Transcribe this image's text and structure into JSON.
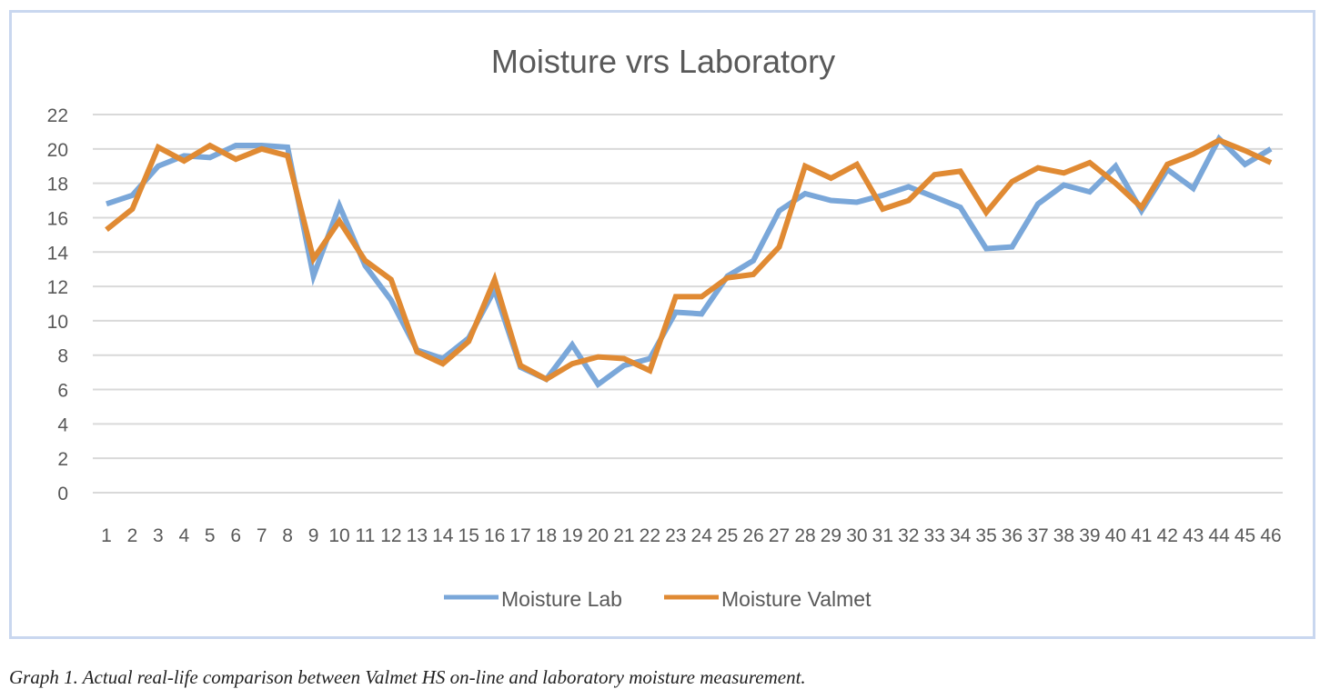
{
  "chart_data": {
    "type": "line",
    "title": "Moisture vrs Laboratory",
    "xlabel": "",
    "ylabel": "",
    "ylim": [
      0,
      22
    ],
    "yticks": [
      "0",
      "2",
      "4",
      "6",
      "8",
      "10",
      "12",
      "14",
      "16",
      "18",
      "20",
      "22"
    ],
    "grid": true,
    "legend_position": "bottom",
    "x": [
      "1",
      "2",
      "3",
      "4",
      "5",
      "6",
      "7",
      "8",
      "9",
      "10",
      "11",
      "12",
      "13",
      "14",
      "15",
      "16",
      "17",
      "18",
      "19",
      "20",
      "21",
      "22",
      "23",
      "24",
      "25",
      "26",
      "27",
      "28",
      "29",
      "30",
      "31",
      "32",
      "33",
      "34",
      "35",
      "36",
      "37",
      "38",
      "39",
      "40",
      "41",
      "42",
      "43",
      "44",
      "45",
      "46"
    ],
    "series": [
      {
        "name": "Moisture Lab",
        "color": "#7aa7d9",
        "values": [
          16.8,
          17.3,
          19.0,
          19.6,
          19.5,
          20.2,
          20.2,
          20.1,
          12.6,
          16.7,
          13.2,
          11.2,
          8.3,
          7.8,
          9.0,
          11.8,
          7.3,
          6.6,
          8.6,
          6.3,
          7.4,
          7.8,
          10.5,
          10.4,
          12.6,
          13.5,
          16.4,
          17.4,
          17.0,
          16.9,
          17.3,
          17.8,
          17.2,
          16.6,
          14.2,
          14.3,
          16.8,
          17.9,
          17.5,
          19.0,
          16.4,
          18.8,
          17.7,
          20.6,
          19.1,
          20.0
        ]
      },
      {
        "name": "Moisture Valmet",
        "color": "#e08a33",
        "values": [
          15.3,
          16.5,
          20.1,
          19.3,
          20.2,
          19.4,
          20.0,
          19.6,
          13.6,
          15.8,
          13.5,
          12.4,
          8.2,
          7.5,
          8.8,
          12.4,
          7.4,
          6.6,
          7.5,
          7.9,
          7.8,
          7.1,
          11.4,
          11.4,
          12.5,
          12.7,
          14.3,
          19.0,
          18.3,
          19.1,
          16.5,
          17.0,
          18.5,
          18.7,
          16.3,
          18.1,
          18.9,
          18.6,
          19.2,
          18.0,
          16.6,
          19.1,
          19.7,
          20.5,
          19.9,
          19.2
        ]
      }
    ]
  },
  "caption": "Graph 1. Actual real-life comparison between Valmet HS on-line and laboratory moisture measurement."
}
